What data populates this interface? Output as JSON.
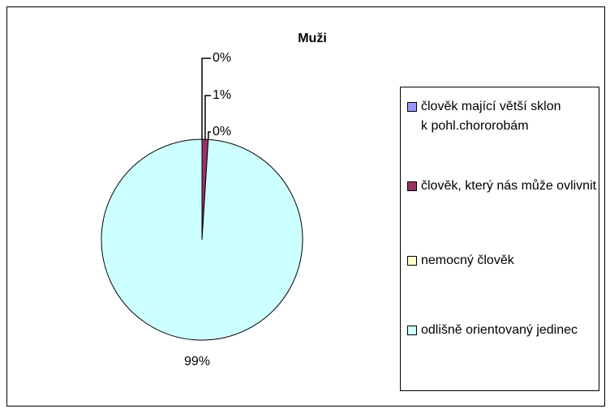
{
  "chart_data": {
    "type": "pie",
    "title": "Muži",
    "categories": [
      "člověk mající větší sklon k pohl.chororobám",
      "člověk, který nás může ovlivnit",
      "nemocný člověk",
      "odlišně orientovaný jedinec"
    ],
    "values": [
      0,
      1,
      0,
      99
    ],
    "value_labels": [
      "0%",
      "1%",
      "0%",
      "99%"
    ],
    "colors": [
      "#9999FF",
      "#993366",
      "#FFFFCC",
      "#CCFFFF"
    ],
    "legend": "right"
  }
}
